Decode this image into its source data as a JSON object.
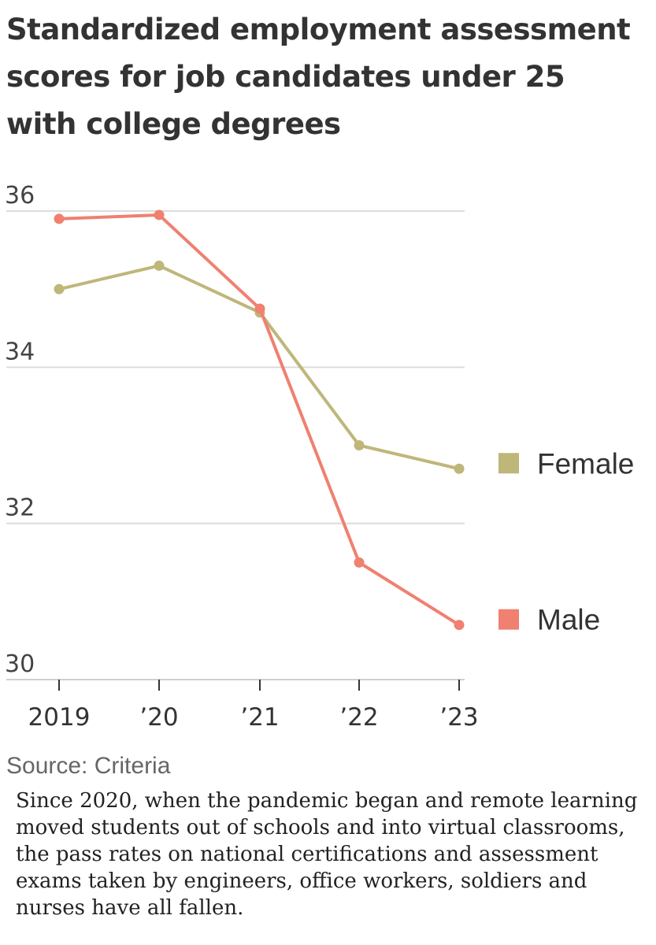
{
  "chart_data": {
    "type": "line",
    "title": "Standardized employment assessment scores for job candidates under 25 with college degrees",
    "categories": [
      "2019",
      "’20",
      "’21",
      "’22",
      "’23"
    ],
    "series": [
      {
        "name": "Female",
        "color": "#bfb67a",
        "values": [
          35.0,
          35.3,
          34.7,
          33.0,
          32.7
        ]
      },
      {
        "name": "Male",
        "color": "#f08070",
        "values": [
          35.9,
          35.95,
          34.75,
          31.5,
          30.7
        ]
      }
    ],
    "yticks": [
      "36",
      "34",
      "32",
      "30"
    ],
    "ytick_values": [
      36,
      34,
      32,
      30
    ],
    "ylim": [
      30,
      36
    ],
    "xlabel": "",
    "ylabel": "",
    "legend_position": "right",
    "grid": true
  },
  "source": "Source: Criteria",
  "caption": "Since 2020, when the pandemic began and remote learning moved students out of schools and into virtual classrooms, the pass rates on national certifications and assessment exams taken by engineers, office workers, soldiers and nurses have all fallen."
}
